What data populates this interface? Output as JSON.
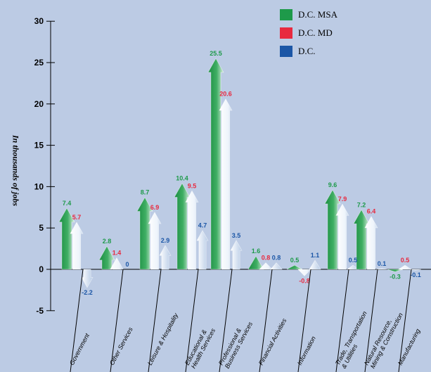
{
  "chart_data": {
    "type": "bar",
    "ylabel": "In thousands of jobs",
    "ylim": [
      -5,
      30
    ],
    "yticks": [
      -5,
      0,
      5,
      10,
      15,
      20,
      25,
      30
    ],
    "categories": [
      [
        "Government"
      ],
      [
        "Other Services"
      ],
      [
        "Leisure & Hospitality"
      ],
      [
        "Educational &",
        "Health Services"
      ],
      [
        "Professional &",
        "Business Services"
      ],
      [
        "Financial Activities"
      ],
      [
        "Information"
      ],
      [
        "Trade, Transportation",
        "& Utilities"
      ],
      [
        "Natural Resource,",
        "Mining & Construction"
      ],
      [
        "Manufacturing"
      ]
    ],
    "series": [
      {
        "name": "D.C. MSA",
        "color": "#1e9a4a",
        "values": [
          7.4,
          2.8,
          8.7,
          10.4,
          25.5,
          1.6,
          0.5,
          9.6,
          7.2,
          -0.3
        ]
      },
      {
        "name": "D.C. MD",
        "color": "#e8293f",
        "values": [
          5.7,
          1.4,
          6.9,
          9.5,
          20.6,
          0.8,
          -0.8,
          7.9,
          6.4,
          0.5
        ]
      },
      {
        "name": "D.C.",
        "color": "#1b56a6",
        "values": [
          -2.2,
          0,
          2.9,
          4.7,
          3.5,
          0.8,
          1.1,
          0.5,
          0.1,
          -0.1
        ]
      }
    ],
    "legend_position": "top-right",
    "grid": false
  }
}
